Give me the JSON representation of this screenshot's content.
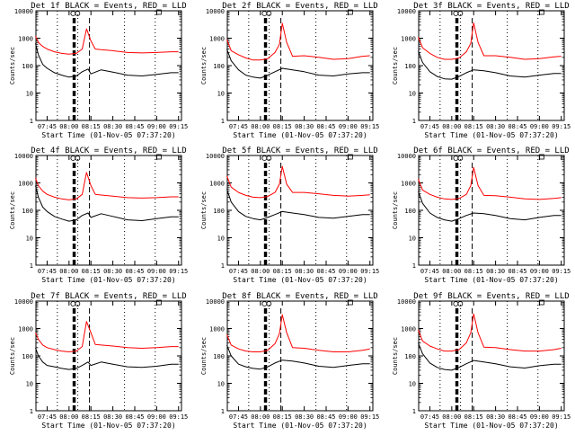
{
  "colors": {
    "events": "#000000",
    "lld": "#ff0000",
    "marker": "#000000"
  },
  "chart_data": [
    {
      "type": "line",
      "title": "Det 1f BLACK = Events, RED = LLD",
      "xlabel": "Start Time (01-Nov-05 07:37:20)",
      "ylabel": "Counts/sec",
      "ylog": true,
      "ylim": [
        1,
        10000
      ],
      "x_ticks": [
        "07:45",
        "08:00",
        "08:15",
        "08:30",
        "08:45",
        "09:00",
        "09:15"
      ],
      "y_ticks": [
        "1",
        "10",
        "100",
        "1000",
        "10000"
      ],
      "panel_marker": "F",
      "series": [
        {
          "name": "Events",
          "color": "#000000",
          "x": [
            "07:37",
            "07:39",
            "07:42",
            "07:45",
            "07:50",
            "07:55",
            "08:00",
            "08:05",
            "08:09",
            "08:13",
            "08:15",
            "08:22",
            "08:30",
            "08:40",
            "08:50",
            "09:00",
            "09:10",
            "09:15"
          ],
          "y": [
            650,
            250,
            110,
            80,
            55,
            45,
            38,
            42,
            60,
            75,
            50,
            70,
            58,
            45,
            42,
            48,
            55,
            55
          ]
        },
        {
          "name": "LLD",
          "color": "#ff0000",
          "x": [
            "07:37",
            "07:39",
            "07:42",
            "07:45",
            "07:50",
            "07:55",
            "08:00",
            "08:05",
            "08:09",
            "08:12",
            "08:15",
            "08:18",
            "08:22",
            "08:30",
            "08:40",
            "08:50",
            "09:00",
            "09:10",
            "09:15"
          ],
          "y": [
            1200,
            700,
            500,
            400,
            320,
            280,
            260,
            280,
            400,
            2200,
            800,
            400,
            380,
            350,
            300,
            290,
            300,
            320,
            320
          ]
        }
      ]
    },
    {
      "type": "line",
      "title": "Det 2f BLACK = Events, RED = LLD",
      "xlabel": "Start Time (01-Nov-05 07:37:20)",
      "ylabel": "Counts/sec",
      "ylog": true,
      "ylim": [
        1,
        10000
      ],
      "x_ticks": [
        "07:45",
        "08:00",
        "08:15",
        "08:30",
        "08:45",
        "09:00",
        "09:15"
      ],
      "y_ticks": [
        "1",
        "10",
        "100",
        "1000",
        "10000"
      ],
      "panel_marker": "F",
      "series": [
        {
          "name": "Events",
          "color": "#000000",
          "x": [
            "07:37",
            "07:40",
            "07:45",
            "07:50",
            "07:55",
            "08:00",
            "08:05",
            "08:10",
            "08:15",
            "08:22",
            "08:30",
            "08:40",
            "08:50",
            "09:00",
            "09:10",
            "09:15"
          ],
          "y": [
            400,
            150,
            70,
            45,
            38,
            35,
            45,
            60,
            80,
            70,
            60,
            45,
            42,
            50,
            55,
            55
          ]
        },
        {
          "name": "LLD",
          "color": "#ff0000",
          "x": [
            "07:37",
            "07:40",
            "07:45",
            "07:50",
            "07:55",
            "08:00",
            "08:05",
            "08:10",
            "08:13",
            "08:15",
            "08:18",
            "08:22",
            "08:30",
            "08:40",
            "08:50",
            "09:00",
            "09:10",
            "09:15"
          ],
          "y": [
            900,
            350,
            250,
            190,
            160,
            160,
            180,
            300,
            600,
            3500,
            700,
            220,
            230,
            200,
            170,
            180,
            220,
            230
          ]
        }
      ]
    },
    {
      "type": "line",
      "title": "Det 3f BLACK = Events, RED = LLD",
      "xlabel": "Start Time (01-Nov-05 07:37:20)",
      "ylabel": "Counts/sec",
      "ylog": true,
      "ylim": [
        1,
        10000
      ],
      "x_ticks": [
        "07:45",
        "08:00",
        "08:15",
        "08:30",
        "08:45",
        "09:00",
        "09:15"
      ],
      "y_ticks": [
        "1",
        "10",
        "100",
        "1000",
        "10000"
      ],
      "panel_marker": "F",
      "series": [
        {
          "name": "Events",
          "color": "#000000",
          "x": [
            "07:37",
            "07:40",
            "07:45",
            "07:50",
            "07:55",
            "08:00",
            "08:05",
            "08:10",
            "08:15",
            "08:22",
            "08:30",
            "08:40",
            "08:50",
            "09:00",
            "09:10",
            "09:15"
          ],
          "y": [
            350,
            130,
            60,
            40,
            33,
            32,
            40,
            55,
            70,
            65,
            55,
            42,
            38,
            45,
            52,
            52
          ]
        },
        {
          "name": "LLD",
          "color": "#ff0000",
          "x": [
            "07:37",
            "07:40",
            "07:45",
            "07:50",
            "07:55",
            "08:00",
            "08:05",
            "08:10",
            "08:13",
            "08:15",
            "08:18",
            "08:22",
            "08:30",
            "08:40",
            "08:50",
            "09:00",
            "09:10",
            "09:15"
          ],
          "y": [
            1100,
            450,
            280,
            200,
            170,
            170,
            190,
            320,
            650,
            3600,
            700,
            230,
            230,
            200,
            170,
            180,
            210,
            220
          ]
        }
      ]
    },
    {
      "type": "line",
      "title": "Det 4f BLACK = Events, RED = LLD",
      "xlabel": "Start Time (01-Nov-05 07:37:20)",
      "ylabel": "Counts/sec",
      "ylog": true,
      "ylim": [
        1,
        10000
      ],
      "x_ticks": [
        "07:45",
        "08:00",
        "08:15",
        "08:30",
        "08:45",
        "09:00",
        "09:15"
      ],
      "y_ticks": [
        "1",
        "10",
        "100",
        "1000",
        "10000"
      ],
      "panel_marker": "F",
      "series": [
        {
          "name": "Events",
          "color": "#000000",
          "x": [
            "07:37",
            "07:39",
            "07:42",
            "07:45",
            "07:50",
            "07:55",
            "08:00",
            "08:05",
            "08:09",
            "08:13",
            "08:15",
            "08:22",
            "08:30",
            "08:40",
            "08:50",
            "09:00",
            "09:10",
            "09:15"
          ],
          "y": [
            800,
            300,
            130,
            90,
            60,
            48,
            40,
            45,
            65,
            80,
            55,
            75,
            60,
            45,
            42,
            50,
            58,
            58
          ]
        },
        {
          "name": "LLD",
          "color": "#ff0000",
          "x": [
            "07:37",
            "07:39",
            "07:42",
            "07:45",
            "07:50",
            "07:55",
            "08:00",
            "08:05",
            "08:09",
            "08:12",
            "08:15",
            "08:18",
            "08:22",
            "08:30",
            "08:40",
            "08:50",
            "09:00",
            "09:10",
            "09:15"
          ],
          "y": [
            1500,
            800,
            500,
            380,
            300,
            260,
            240,
            260,
            380,
            2400,
            800,
            380,
            360,
            330,
            290,
            280,
            290,
            310,
            310
          ]
        }
      ]
    },
    {
      "type": "line",
      "title": "Det 5f BLACK = Events, RED = LLD",
      "xlabel": "Start Time (01-Nov-05 07:37:20)",
      "ylabel": "Counts/sec",
      "ylog": true,
      "ylim": [
        1,
        10000
      ],
      "x_ticks": [
        "07:45",
        "08:00",
        "08:15",
        "08:30",
        "08:45",
        "09:00",
        "09:15"
      ],
      "y_ticks": [
        "1",
        "10",
        "100",
        "1000",
        "10000"
      ],
      "panel_marker": "F",
      "series": [
        {
          "name": "Events",
          "color": "#000000",
          "x": [
            "07:37",
            "07:40",
            "07:45",
            "07:50",
            "07:55",
            "08:00",
            "08:05",
            "08:10",
            "08:15",
            "08:22",
            "08:30",
            "08:40",
            "08:50",
            "09:00",
            "09:10",
            "09:15"
          ],
          "y": [
            600,
            200,
            90,
            60,
            50,
            45,
            55,
            70,
            90,
            80,
            70,
            55,
            52,
            60,
            70,
            70
          ]
        },
        {
          "name": "LLD",
          "color": "#ff0000",
          "x": [
            "07:37",
            "07:40",
            "07:45",
            "07:50",
            "07:55",
            "08:00",
            "08:05",
            "08:10",
            "08:13",
            "08:15",
            "08:18",
            "08:22",
            "08:30",
            "08:40",
            "08:50",
            "09:00",
            "09:10",
            "09:15"
          ],
          "y": [
            1800,
            700,
            450,
            350,
            300,
            290,
            320,
            450,
            900,
            4000,
            900,
            450,
            450,
            400,
            350,
            330,
            350,
            370
          ]
        }
      ]
    },
    {
      "type": "line",
      "title": "Det 6f BLACK = Events, RED = LLD",
      "xlabel": "Start Time (01-Nov-05 07:37:20)",
      "ylabel": "Counts/sec",
      "ylog": true,
      "ylim": [
        1,
        10000
      ],
      "x_ticks": [
        "07:45",
        "08:00",
        "08:15",
        "08:30",
        "08:45",
        "09:00",
        "09:15"
      ],
      "y_ticks": [
        "1",
        "10",
        "100",
        "1000",
        "10000"
      ],
      "panel_marker": "F",
      "series": [
        {
          "name": "Events",
          "color": "#000000",
          "x": [
            "07:37",
            "07:40",
            "07:45",
            "07:50",
            "07:55",
            "08:00",
            "08:05",
            "08:10",
            "08:15",
            "08:22",
            "08:30",
            "08:40",
            "08:50",
            "09:00",
            "09:10",
            "09:15"
          ],
          "y": [
            500,
            180,
            80,
            55,
            45,
            40,
            50,
            65,
            80,
            75,
            65,
            50,
            45,
            55,
            65,
            65
          ]
        },
        {
          "name": "LLD",
          "color": "#ff0000",
          "x": [
            "07:37",
            "07:40",
            "07:45",
            "07:50",
            "07:55",
            "08:00",
            "08:05",
            "08:10",
            "08:13",
            "08:15",
            "08:18",
            "08:22",
            "08:30",
            "08:40",
            "08:50",
            "09:00",
            "09:10",
            "09:15"
          ],
          "y": [
            1400,
            550,
            380,
            300,
            260,
            250,
            270,
            380,
            800,
            3700,
            800,
            350,
            340,
            300,
            260,
            250,
            270,
            290
          ]
        }
      ]
    },
    {
      "type": "line",
      "title": "Det 7f BLACK = Events, RED = LLD",
      "xlabel": "Start Time (01-Nov-05 07:37:20)",
      "ylabel": "Counts/sec",
      "ylog": true,
      "ylim": [
        1,
        10000
      ],
      "x_ticks": [
        "07:45",
        "08:00",
        "08:15",
        "08:30",
        "08:45",
        "09:00",
        "09:15"
      ],
      "y_ticks": [
        "1",
        "10",
        "100",
        "1000",
        "10000"
      ],
      "panel_marker": "F",
      "series": [
        {
          "name": "Events",
          "color": "#000000",
          "x": [
            "07:37",
            "07:39",
            "07:42",
            "07:45",
            "07:50",
            "07:55",
            "08:00",
            "08:05",
            "08:09",
            "08:13",
            "08:15",
            "08:22",
            "08:30",
            "08:40",
            "08:50",
            "09:00",
            "09:10",
            "09:15"
          ],
          "y": [
            200,
            100,
            60,
            45,
            40,
            35,
            32,
            35,
            45,
            60,
            45,
            60,
            50,
            40,
            38,
            42,
            50,
            50
          ]
        },
        {
          "name": "LLD",
          "color": "#ff0000",
          "x": [
            "07:37",
            "07:39",
            "07:42",
            "07:45",
            "07:50",
            "07:55",
            "08:00",
            "08:05",
            "08:09",
            "08:12",
            "08:15",
            "08:18",
            "08:22",
            "08:30",
            "08:40",
            "08:50",
            "09:00",
            "09:10",
            "09:15"
          ],
          "y": [
            700,
            400,
            250,
            200,
            170,
            150,
            140,
            150,
            220,
            1800,
            700,
            260,
            250,
            230,
            200,
            190,
            200,
            220,
            220
          ]
        }
      ]
    },
    {
      "type": "line",
      "title": "Det 8f BLACK = Events, RED = LLD",
      "xlabel": "Start Time (01-Nov-05 07:37:20)",
      "ylabel": "Counts/sec",
      "ylog": true,
      "ylim": [
        1,
        10000
      ],
      "x_ticks": [
        "07:45",
        "08:00",
        "08:15",
        "08:30",
        "08:45",
        "09:00",
        "09:15"
      ],
      "y_ticks": [
        "1",
        "10",
        "100",
        "1000",
        "10000"
      ],
      "panel_marker": "F",
      "series": [
        {
          "name": "Events",
          "color": "#000000",
          "x": [
            "07:37",
            "07:40",
            "07:45",
            "07:50",
            "07:55",
            "08:00",
            "08:05",
            "08:10",
            "08:15",
            "08:22",
            "08:30",
            "08:40",
            "08:50",
            "09:00",
            "09:10",
            "09:15"
          ],
          "y": [
            250,
            100,
            50,
            40,
            35,
            33,
            40,
            55,
            70,
            65,
            55,
            42,
            38,
            45,
            52,
            52
          ]
        },
        {
          "name": "LLD",
          "color": "#ff0000",
          "x": [
            "07:37",
            "07:40",
            "07:45",
            "07:50",
            "07:55",
            "08:00",
            "08:05",
            "08:10",
            "08:13",
            "08:15",
            "08:18",
            "08:22",
            "08:30",
            "08:40",
            "08:50",
            "09:00",
            "09:10",
            "09:15"
          ],
          "y": [
            600,
            250,
            180,
            150,
            140,
            140,
            160,
            280,
            650,
            3200,
            700,
            200,
            190,
            160,
            140,
            140,
            160,
            180
          ]
        }
      ]
    },
    {
      "type": "line",
      "title": "Det 9f BLACK = Events, RED = LLD",
      "xlabel": "Start Time (01-Nov-05 07:37:20)",
      "ylabel": "Counts/sec",
      "ylog": true,
      "ylim": [
        1,
        10000
      ],
      "x_ticks": [
        "07:45",
        "08:00",
        "08:15",
        "08:30",
        "08:45",
        "09:00",
        "09:15"
      ],
      "y_ticks": [
        "1",
        "10",
        "100",
        "1000",
        "10000"
      ],
      "panel_marker": "F",
      "series": [
        {
          "name": "Events",
          "color": "#000000",
          "x": [
            "07:37",
            "07:40",
            "07:45",
            "07:50",
            "07:55",
            "08:00",
            "08:05",
            "08:10",
            "08:15",
            "08:22",
            "08:30",
            "08:40",
            "08:50",
            "09:00",
            "09:10",
            "09:15"
          ],
          "y": [
            300,
            120,
            55,
            38,
            32,
            30,
            38,
            52,
            68,
            60,
            52,
            40,
            36,
            44,
            50,
            50
          ]
        },
        {
          "name": "LLD",
          "color": "#ff0000",
          "x": [
            "07:37",
            "07:40",
            "07:45",
            "07:50",
            "07:55",
            "08:00",
            "08:05",
            "08:10",
            "08:13",
            "08:15",
            "08:18",
            "08:22",
            "08:30",
            "08:40",
            "08:50",
            "09:00",
            "09:10",
            "09:15"
          ],
          "y": [
            900,
            350,
            230,
            180,
            150,
            150,
            170,
            300,
            700,
            3400,
            700,
            210,
            200,
            170,
            150,
            150,
            170,
            190
          ]
        }
      ]
    }
  ]
}
